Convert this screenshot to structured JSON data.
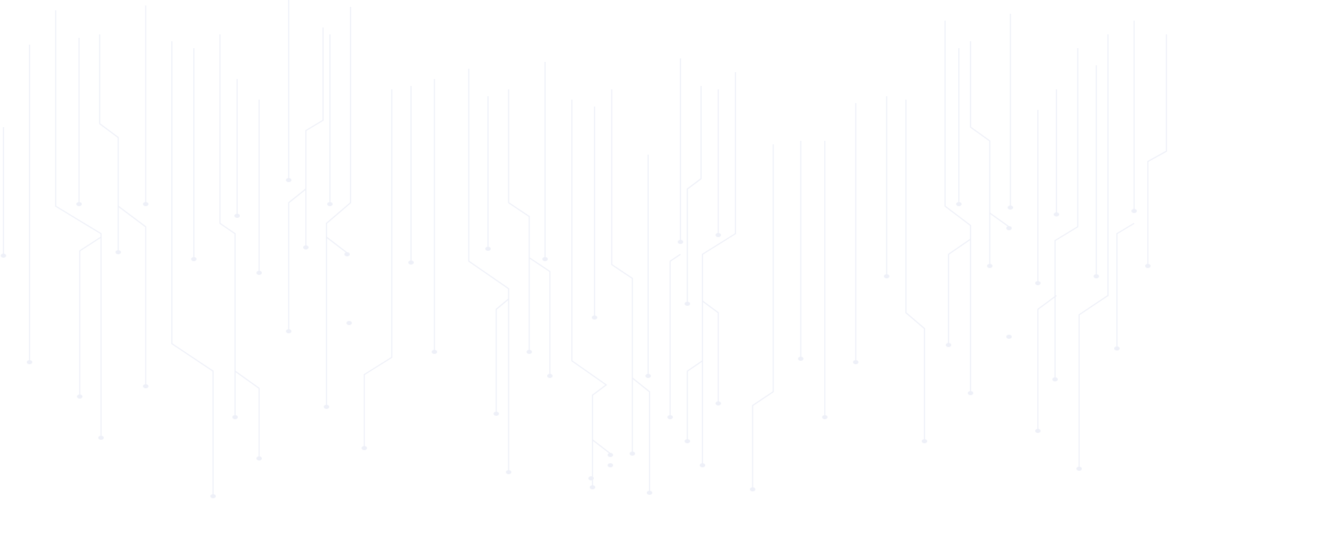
{
  "background": {
    "pattern": "circuit-lines",
    "background_color": "#ffffff",
    "line_color": "#eef0f8",
    "node_color": "#eef0f8"
  }
}
